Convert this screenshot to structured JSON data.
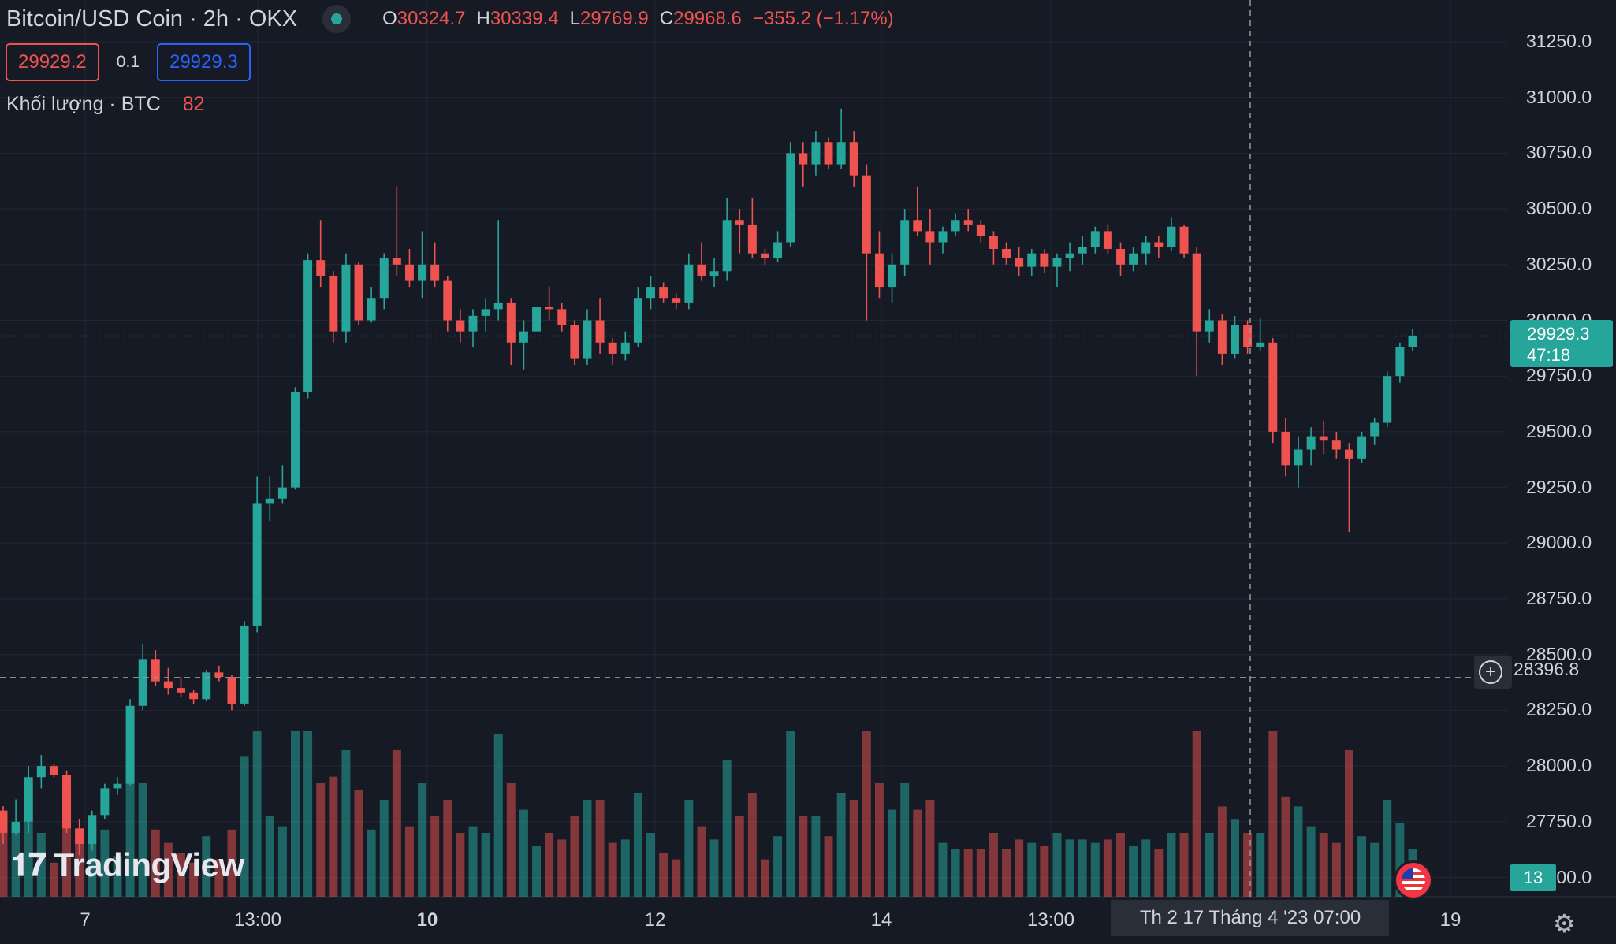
{
  "header": {
    "symbol": "Bitcoin/USD Coin · 2h · OKX",
    "o_label": "O",
    "o_value": "30324.7",
    "h_label": "H",
    "h_value": "30339.4",
    "l_label": "L",
    "l_value": "29769.9",
    "c_label": "C",
    "c_value": "29968.6",
    "change": "−355.2 (−1.17%)"
  },
  "trade": {
    "sell_price": "29929.2",
    "quantity": "0.1",
    "buy_price": "29929.3"
  },
  "volume_legend": {
    "label": "Khối lượng · BTC",
    "value": "82"
  },
  "price_axis": [
    "31250.0",
    "31000.0",
    "30750.0",
    "30500.0",
    "30250.0",
    "30000.0",
    "29750.0",
    "29500.0",
    "29250.0",
    "29000.0",
    "28750.0",
    "28500.0",
    "28250.0",
    "28000.0",
    "27750.0",
    "27500.0"
  ],
  "current_price": {
    "price": "29929.3",
    "countdown": "47:18"
  },
  "crosshair": {
    "price": "28396.8",
    "time": "Th 2 17 Tháng 4 '23   07:00"
  },
  "volume_tag": "13",
  "time_axis": [
    "7",
    "13:00",
    "10",
    "12",
    "14",
    "13:00",
    "19"
  ],
  "logo_text": "TradingView",
  "colors": {
    "up": "#26a69a",
    "down": "#ef5350",
    "background": "#161a25",
    "grid": "#232733"
  },
  "chart_data": {
    "type": "candlestick",
    "timeframe": "2h",
    "ylim": [
      27500,
      31300
    ],
    "candles": [
      [
        27800,
        27820,
        27650,
        27700
      ],
      [
        27700,
        27850,
        27690,
        27750
      ],
      [
        27750,
        28000,
        27700,
        27950
      ],
      [
        27950,
        28050,
        27900,
        28000
      ],
      [
        28000,
        28010,
        27950,
        27960
      ],
      [
        27960,
        27980,
        27700,
        27720
      ],
      [
        27720,
        27760,
        27600,
        27650
      ],
      [
        27650,
        27800,
        27620,
        27780
      ],
      [
        27780,
        27920,
        27760,
        27900
      ],
      [
        27900,
        27950,
        27870,
        27920
      ],
      [
        27920,
        28300,
        27910,
        28270
      ],
      [
        28270,
        28550,
        28250,
        28480
      ],
      [
        28480,
        28520,
        28360,
        28380
      ],
      [
        28380,
        28440,
        28320,
        28350
      ],
      [
        28350,
        28400,
        28310,
        28330
      ],
      [
        28330,
        28340,
        28280,
        28300
      ],
      [
        28300,
        28430,
        28290,
        28420
      ],
      [
        28420,
        28450,
        28380,
        28400
      ],
      [
        28400,
        28410,
        28250,
        28280
      ],
      [
        28280,
        28650,
        28270,
        28630
      ],
      [
        28630,
        29300,
        28600,
        29180
      ],
      [
        29180,
        29300,
        29100,
        29200
      ],
      [
        29200,
        29350,
        29180,
        29250
      ],
      [
        29250,
        29700,
        29240,
        29680
      ],
      [
        29680,
        30300,
        29650,
        30270
      ],
      [
        30270,
        30450,
        30150,
        30200
      ],
      [
        30200,
        30220,
        29900,
        29950
      ],
      [
        29950,
        30300,
        29900,
        30250
      ],
      [
        30250,
        30260,
        29980,
        30000
      ],
      [
        30000,
        30150,
        29990,
        30100
      ],
      [
        30100,
        30300,
        30050,
        30280
      ],
      [
        30280,
        30600,
        30200,
        30250
      ],
      [
        30250,
        30320,
        30150,
        30180
      ],
      [
        30180,
        30400,
        30100,
        30250
      ],
      [
        30250,
        30350,
        30150,
        30180
      ],
      [
        30180,
        30200,
        29950,
        30000
      ],
      [
        30000,
        30050,
        29900,
        29950
      ],
      [
        29950,
        30050,
        29880,
        30020
      ],
      [
        30020,
        30100,
        29950,
        30050
      ],
      [
        30050,
        30450,
        30000,
        30080
      ],
      [
        30080,
        30100,
        29800,
        29900
      ],
      [
        29900,
        30000,
        29780,
        29950
      ],
      [
        29950,
        30060,
        29950,
        30060
      ],
      [
        30060,
        30150,
        30000,
        30050
      ],
      [
        30050,
        30080,
        29950,
        29980
      ],
      [
        29980,
        30000,
        29800,
        29830
      ],
      [
        29830,
        30050,
        29800,
        30000
      ],
      [
        30000,
        30100,
        29850,
        29900
      ],
      [
        29900,
        29920,
        29800,
        29850
      ],
      [
        29850,
        29950,
        29820,
        29900
      ],
      [
        29900,
        30150,
        29880,
        30100
      ],
      [
        30100,
        30200,
        30050,
        30150
      ],
      [
        30150,
        30170,
        30080,
        30100
      ],
      [
        30100,
        30120,
        30050,
        30080
      ],
      [
        30080,
        30300,
        30050,
        30250
      ],
      [
        30250,
        30350,
        30180,
        30200
      ],
      [
        30200,
        30280,
        30150,
        30220
      ],
      [
        30220,
        30550,
        30180,
        30450
      ],
      [
        30450,
        30500,
        30300,
        30430
      ],
      [
        30430,
        30550,
        30280,
        30300
      ],
      [
        30300,
        30320,
        30250,
        30280
      ],
      [
        30280,
        30400,
        30260,
        30350
      ],
      [
        30350,
        30800,
        30330,
        30750
      ],
      [
        30750,
        30800,
        30600,
        30700
      ],
      [
        30700,
        30850,
        30650,
        30800
      ],
      [
        30800,
        30820,
        30680,
        30700
      ],
      [
        30700,
        30950,
        30680,
        30800
      ],
      [
        30800,
        30850,
        30600,
        30650
      ],
      [
        30650,
        30700,
        30000,
        30300
      ],
      [
        30300,
        30400,
        30100,
        30150
      ],
      [
        30150,
        30300,
        30080,
        30250
      ],
      [
        30250,
        30500,
        30200,
        30450
      ],
      [
        30450,
        30600,
        30380,
        30400
      ],
      [
        30400,
        30500,
        30250,
        30350
      ],
      [
        30350,
        30420,
        30300,
        30400
      ],
      [
        30400,
        30480,
        30380,
        30450
      ],
      [
        30450,
        30500,
        30400,
        30430
      ],
      [
        30430,
        30450,
        30350,
        30380
      ],
      [
        30380,
        30400,
        30250,
        30320
      ],
      [
        30320,
        30350,
        30250,
        30280
      ],
      [
        30280,
        30330,
        30200,
        30240
      ],
      [
        30240,
        30320,
        30200,
        30300
      ],
      [
        30300,
        30320,
        30210,
        30240
      ],
      [
        30240,
        30300,
        30150,
        30280
      ],
      [
        30280,
        30350,
        30220,
        30300
      ],
      [
        30300,
        30380,
        30250,
        30330
      ],
      [
        30330,
        30420,
        30300,
        30400
      ],
      [
        30400,
        30430,
        30300,
        30320
      ],
      [
        30320,
        30350,
        30200,
        30250
      ],
      [
        30250,
        30330,
        30220,
        30300
      ],
      [
        30300,
        30380,
        30250,
        30350
      ],
      [
        30350,
        30380,
        30280,
        30330
      ],
      [
        30330,
        30460,
        30310,
        30420
      ],
      [
        30420,
        30430,
        30280,
        30300
      ],
      [
        30300,
        30330,
        29750,
        29950
      ],
      [
        29950,
        30050,
        29900,
        30000
      ],
      [
        30000,
        30030,
        29800,
        29850
      ],
      [
        29850,
        30020,
        29830,
        29980
      ],
      [
        29980,
        30000,
        29850,
        29880
      ],
      [
        29880,
        30010,
        29860,
        29900
      ],
      [
        29900,
        29920,
        29450,
        29500
      ],
      [
        29500,
        29560,
        29300,
        29350
      ],
      [
        29350,
        29480,
        29250,
        29420
      ],
      [
        29420,
        29520,
        29350,
        29480
      ],
      [
        29480,
        29550,
        29400,
        29460
      ],
      [
        29460,
        29500,
        29380,
        29420
      ],
      [
        29420,
        29450,
        29050,
        29380
      ],
      [
        29380,
        29500,
        29360,
        29480
      ],
      [
        29480,
        29560,
        29440,
        29540
      ],
      [
        29540,
        29770,
        29520,
        29750
      ],
      [
        29750,
        29900,
        29720,
        29880
      ],
      [
        29880,
        29960,
        29860,
        29929.3
      ]
    ],
    "volumes": []
  }
}
